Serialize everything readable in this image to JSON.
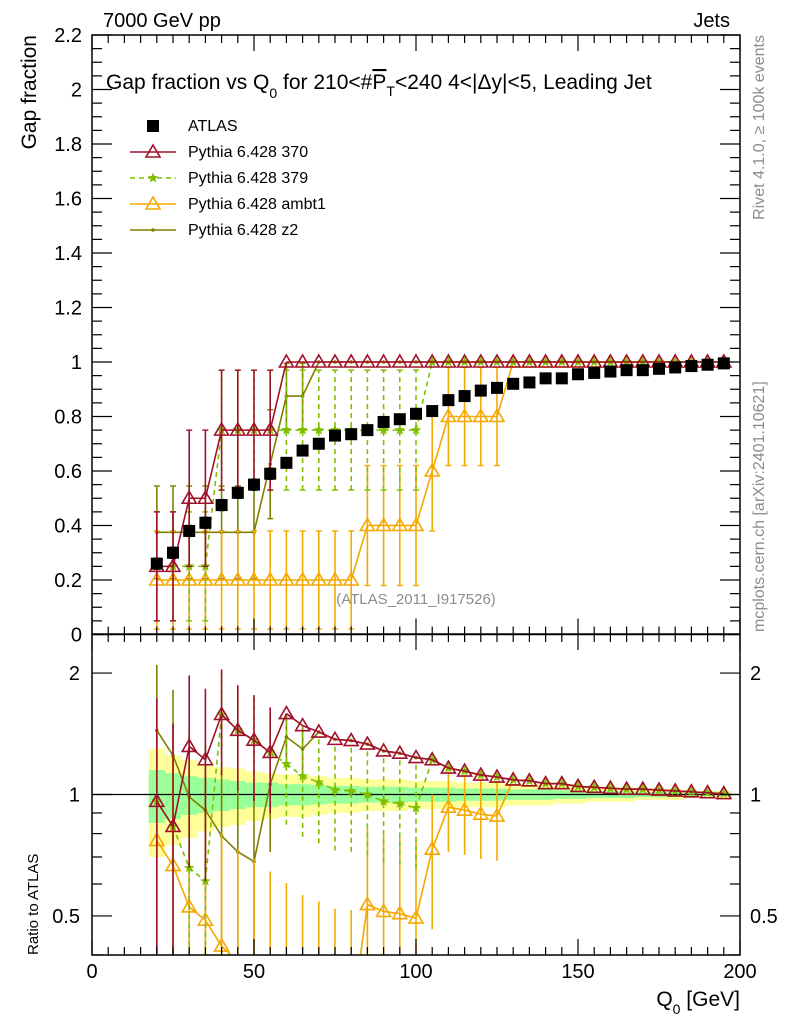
{
  "header": {
    "left": "7000 GeV pp",
    "right": "Jets"
  },
  "side_labels": {
    "rivet": "Rivet 4.1.0, ≥ 100k events",
    "mcplots": "mcplots.cern.ch [arXiv:2401.10621]"
  },
  "analysis_id": "(ATLAS_2011_I917526)",
  "colors": {
    "ATLAS": "#000000",
    "p370": "#a0102a",
    "p379": "#7fbf00",
    "ambt1": "#f5a800",
    "z2": "#808000",
    "band_outer": "#ffff99",
    "band_inner": "#99ff99"
  },
  "chart_data": [
    {
      "type": "line",
      "title_parts": [
        "Gap fraction vs Q",
        "0",
        " for 210<#",
        "P",
        "T",
        "<240  4<|Δy|<5, Leading Jet"
      ],
      "ylabel": "Gap fraction",
      "xlim": [
        0,
        200
      ],
      "ylim": [
        0,
        2.2
      ],
      "yticks": [
        "0",
        "0.2",
        "0.4",
        "0.6",
        "0.8",
        "1",
        "1.2",
        "1.4",
        "1.6",
        "1.8",
        "2",
        "2.2"
      ],
      "ytick_values": [
        0,
        0.2,
        0.4,
        0.6,
        0.8,
        1,
        1.2,
        1.4,
        1.6,
        1.8,
        2,
        2.2
      ],
      "legend_placement": "top-left",
      "x": [
        20,
        25,
        30,
        35,
        40,
        45,
        50,
        55,
        60,
        65,
        70,
        75,
        80,
        85,
        90,
        95,
        100,
        105,
        110,
        115,
        120,
        125,
        130,
        135,
        140,
        145,
        150,
        155,
        160,
        165,
        170,
        175,
        180,
        185,
        190,
        195
      ],
      "series": [
        {
          "key": "ATLAS",
          "name": "ATLAS",
          "marker": "square",
          "values": [
            0.26,
            0.3,
            0.38,
            0.41,
            0.475,
            0.52,
            0.55,
            0.59,
            0.63,
            0.675,
            0.7,
            0.73,
            0.735,
            0.75,
            0.78,
            0.79,
            0.81,
            0.82,
            0.86,
            0.875,
            0.895,
            0.905,
            0.92,
            0.925,
            0.94,
            0.94,
            0.955,
            0.96,
            0.965,
            0.97,
            0.97,
            0.975,
            0.98,
            0.985,
            0.99,
            0.995
          ],
          "errors": [
            0.02,
            0.02,
            0.02,
            0.02,
            0.02,
            0.02,
            0.02,
            0.02,
            0.015,
            0.015,
            0.015,
            0.015,
            0.015,
            0.015,
            0.01,
            0.01,
            0.01,
            0.01,
            0.01,
            0.01,
            0.01,
            0.01,
            0.01,
            0.01,
            0.01,
            0.01,
            0.01,
            0.01,
            0.01,
            0.01,
            0.01,
            0.01,
            0.01,
            0.01,
            0.01,
            0.01
          ]
        },
        {
          "key": "p370",
          "name": "Pythia 6.428 370",
          "marker": "triangle",
          "dash": false,
          "values": [
            0.25,
            0.25,
            0.5,
            0.5,
            0.75,
            0.75,
            0.75,
            0.75,
            1,
            1,
            1,
            1,
            1,
            1,
            1,
            1,
            1,
            1,
            1,
            1,
            1,
            1,
            1,
            1,
            1,
            1,
            1,
            1,
            1,
            1,
            1,
            1,
            1,
            1,
            1,
            1
          ],
          "errors": [
            0.2,
            0.2,
            0.25,
            0.25,
            0.22,
            0.22,
            0.22,
            0.22,
            0,
            0,
            0,
            0,
            0,
            0,
            0,
            0,
            0,
            0,
            0,
            0,
            0,
            0,
            0,
            0,
            0,
            0,
            0,
            0,
            0,
            0,
            0,
            0,
            0,
            0,
            0,
            0
          ]
        },
        {
          "key": "p379",
          "name": "Pythia 6.428 379",
          "marker": "star",
          "dash": true,
          "values": [
            0.25,
            0.25,
            0.25,
            0.25,
            0.75,
            0.75,
            0.75,
            0.75,
            0.75,
            0.75,
            0.75,
            0.75,
            0.75,
            0.75,
            0.75,
            0.75,
            0.75,
            1,
            1,
            1,
            1,
            1,
            1,
            1,
            1,
            1,
            1,
            1,
            1,
            1,
            1,
            1,
            1,
            1,
            1,
            1
          ],
          "errors": [
            0.2,
            0.2,
            0.2,
            0.2,
            0.22,
            0.22,
            0.22,
            0.22,
            0.22,
            0.22,
            0.22,
            0.22,
            0.22,
            0.22,
            0.22,
            0.22,
            0.22,
            0,
            0,
            0,
            0,
            0,
            0,
            0,
            0,
            0,
            0,
            0,
            0,
            0,
            0,
            0,
            0,
            0,
            0,
            0
          ]
        },
        {
          "key": "ambt1",
          "name": "Pythia 6.428 ambt1",
          "marker": "triangle",
          "dash": false,
          "values": [
            0.2,
            0.2,
            0.2,
            0.2,
            0.2,
            0.2,
            0.2,
            0.2,
            0.2,
            0.2,
            0.2,
            0.2,
            0.2,
            0.4,
            0.4,
            0.4,
            0.4,
            0.6,
            0.8,
            0.8,
            0.8,
            0.8,
            1,
            1,
            1,
            1,
            1,
            1,
            1,
            1,
            1,
            1,
            1,
            1,
            1,
            1
          ],
          "errors": [
            0.18,
            0.18,
            0.18,
            0.18,
            0.18,
            0.18,
            0.18,
            0.18,
            0.18,
            0.18,
            0.18,
            0.18,
            0.18,
            0.22,
            0.22,
            0.22,
            0.22,
            0.22,
            0.18,
            0.18,
            0.18,
            0.18,
            0,
            0,
            0,
            0,
            0,
            0,
            0,
            0,
            0,
            0,
            0,
            0,
            0,
            0
          ]
        },
        {
          "key": "z2",
          "name": "Pythia 6.428 z2",
          "marker": "dot",
          "dash": false,
          "values": [
            0.375,
            0.375,
            0.375,
            0.375,
            0.375,
            0.375,
            0.375,
            0.625,
            0.875,
            0.875,
            1,
            1,
            1,
            1,
            1,
            1,
            1,
            1,
            1,
            1,
            1,
            1,
            1,
            1,
            1,
            1,
            1,
            1,
            1,
            1,
            1,
            1,
            1,
            1,
            1,
            1
          ],
          "errors": [
            0.17,
            0.17,
            0.17,
            0.17,
            0.17,
            0.17,
            0.17,
            0.2,
            0.12,
            0.12,
            0,
            0,
            0,
            0,
            0,
            0,
            0,
            0,
            0,
            0,
            0,
            0,
            0,
            0,
            0,
            0,
            0,
            0,
            0,
            0,
            0,
            0,
            0,
            0,
            0,
            0
          ]
        }
      ]
    },
    {
      "type": "line",
      "ylabel": "Ratio to ATLAS",
      "xlabel_parts": [
        "Q",
        "0",
        " [GeV]"
      ],
      "xlim": [
        0,
        200
      ],
      "ylim": [
        0.4,
        2.5
      ],
      "yscale": "log",
      "xticks": [
        "0",
        "50",
        "100",
        "150",
        "200"
      ],
      "xtick_values": [
        0,
        50,
        100,
        150,
        200
      ],
      "yticks": [
        "0.5",
        "1",
        "2"
      ],
      "ytick_values": [
        0.5,
        1,
        2
      ],
      "band_outer_halfwidth": [
        0.3,
        0.25,
        0.22,
        0.19,
        0.17,
        0.16,
        0.14,
        0.13,
        0.12,
        0.12,
        0.11,
        0.1,
        0.1,
        0.09,
        0.09,
        0.09,
        0.08,
        0.08,
        0.08,
        0.07,
        0.07,
        0.07,
        0.06,
        0.06,
        0.06,
        0.05,
        0.05,
        0.04,
        0.04,
        0.04,
        0.03,
        0.03,
        0.03,
        0.02,
        0.02,
        0.02
      ],
      "band_inner_halfwidth": [
        0.15,
        0.13,
        0.11,
        0.1,
        0.09,
        0.08,
        0.07,
        0.07,
        0.06,
        0.06,
        0.055,
        0.05,
        0.05,
        0.045,
        0.045,
        0.045,
        0.04,
        0.04,
        0.04,
        0.035,
        0.035,
        0.035,
        0.03,
        0.03,
        0.03,
        0.025,
        0.025,
        0.02,
        0.02,
        0.02,
        0.015,
        0.015,
        0.015,
        0.01,
        0.01,
        0.01
      ]
    }
  ]
}
